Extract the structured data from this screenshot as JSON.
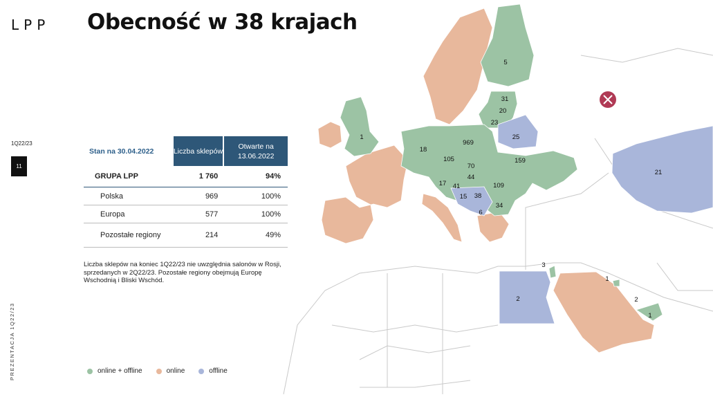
{
  "brand": {
    "logo": "LPP"
  },
  "title": "Obecność w 38 krajach",
  "sidebar": {
    "period": "1Q22/23",
    "page_number": "11",
    "vertical_label": "PREZENTACJA 1Q22/23"
  },
  "table": {
    "as_of": "Stan na 30.04.2022",
    "col1": "Liczba sklepów",
    "col2": "Otwarte na 13.06.2022",
    "rows": [
      {
        "label": "GRUPA LPP",
        "stores": "1 760",
        "open": "94%"
      },
      {
        "label": "Polska",
        "stores": "969",
        "open": "100%"
      },
      {
        "label": "Europa",
        "stores": "577",
        "open": "100%"
      },
      {
        "label": "Pozostałe regiony",
        "stores": "214",
        "open": "49%"
      }
    ]
  },
  "note": "Liczba sklepów na koniec 1Q22/23 nie uwzględnia salonów w Rosji, sprzedanych w 2Q22/23. Pozostałe regiony obejmują Europę Wschodnią i Bliski Wschód.",
  "legend": [
    {
      "label": "online + offline",
      "color": "#9cc3a4"
    },
    {
      "label": "online",
      "color": "#e8b89c"
    },
    {
      "label": "offline",
      "color": "#a9b6da"
    }
  ],
  "map": {
    "colors": {
      "green": "#9cc3a4",
      "orange": "#e8b89c",
      "blue": "#a9b6da",
      "cross": "#b03a55"
    },
    "labels": [
      "5",
      "31",
      "20",
      "23",
      "25",
      "1",
      "18",
      "969",
      "105",
      "70",
      "159",
      "44",
      "17",
      "41",
      "109",
      "15",
      "38",
      "34",
      "6",
      "21",
      "3",
      "1",
      "2",
      "2",
      "1"
    ]
  }
}
